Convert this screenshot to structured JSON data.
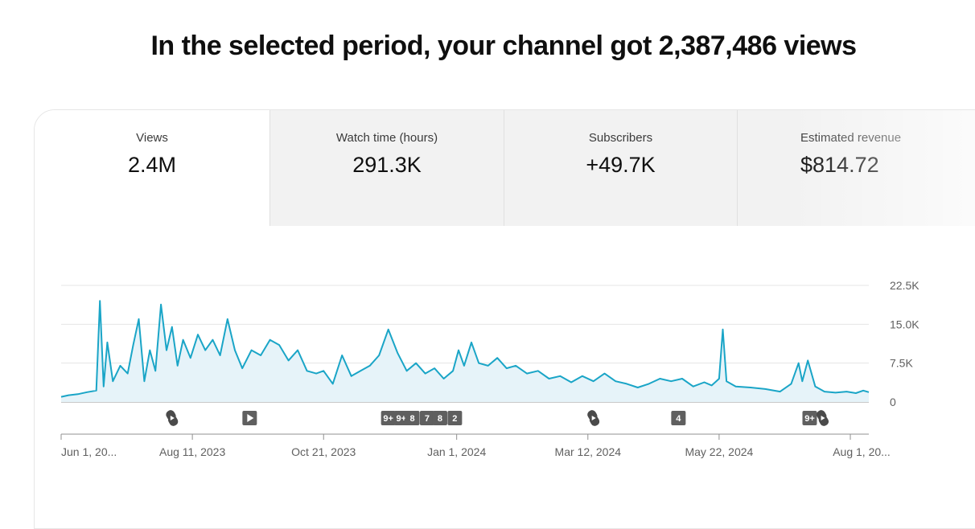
{
  "headline": "In the selected period, your channel got 2,387,486 views",
  "tabs": [
    {
      "label": "Views",
      "value": "2.4M",
      "active": true
    },
    {
      "label": "Watch time (hours)",
      "value": "291.3K",
      "active": false
    },
    {
      "label": "Subscribers",
      "value": "+49.7K",
      "active": false
    },
    {
      "label": "Estimated revenue",
      "value": "$814.72",
      "active": false
    }
  ],
  "colors": {
    "line": "#1aa5c7",
    "area": "#e6f3f9",
    "grid": "#e5e5e5",
    "axis": "#909090",
    "badge": "#5f5f5f"
  },
  "markers": [
    {
      "kind": "shorts-icon",
      "date": "Jul 31, 2023"
    },
    {
      "kind": "video-play-icon",
      "date": "Sep 11, 2023"
    },
    {
      "kind": "count",
      "label": "9+",
      "date": "Nov 25, 2023"
    },
    {
      "kind": "count",
      "label": "9+",
      "date": "Dec 2, 2023"
    },
    {
      "kind": "count",
      "label": "8",
      "date": "Dec 8, 2023"
    },
    {
      "kind": "count",
      "label": "7",
      "date": "Dec 16, 2023"
    },
    {
      "kind": "count",
      "label": "8",
      "date": "Dec 23, 2023"
    },
    {
      "kind": "count",
      "label": "2",
      "date": "Dec 31, 2023"
    },
    {
      "kind": "shorts-icon",
      "date": "Mar 15, 2024"
    },
    {
      "kind": "count",
      "label": "4",
      "date": "Apr 30, 2024"
    },
    {
      "kind": "count",
      "label": "9+",
      "date": "Jul 10, 2024"
    },
    {
      "kind": "shorts-icon",
      "date": "Jul 17, 2024"
    }
  ],
  "chart_data": {
    "type": "area",
    "xlabel": "",
    "ylabel": "",
    "ylim": [
      0,
      22500
    ],
    "yticks": [
      0,
      7500,
      15000,
      22500
    ],
    "ytick_labels": [
      "0",
      "7.5K",
      "15.0K",
      "22.5K"
    ],
    "xlim": [
      "Jun 1, 2023",
      "Aug 11, 2024"
    ],
    "xtick_labels": [
      {
        "label": "Jun 1, 20...",
        "date": "Jun 1, 2023"
      },
      {
        "label": "Aug 11, 2023",
        "date": "Aug 11, 2023"
      },
      {
        "label": "Oct 21, 2023",
        "date": "Oct 21, 2023"
      },
      {
        "label": "Jan 1, 2024",
        "date": "Jan 1, 2024"
      },
      {
        "label": "Mar 12, 2024",
        "date": "Mar 12, 2024"
      },
      {
        "label": "May 22, 2024",
        "date": "May 22, 2024"
      },
      {
        "label": "Aug 1, 20...",
        "date": "Aug 1, 2024"
      }
    ],
    "grid": true,
    "series": [
      {
        "points": [
          [
            "Jun 1, 2023",
            1000
          ],
          [
            "Jun 5, 2023",
            1300
          ],
          [
            "Jun 10, 2023",
            1500
          ],
          [
            "Jun 15, 2023",
            1900
          ],
          [
            "Jun 20, 2023",
            2200
          ],
          [
            "Jun 22, 2023",
            19500
          ],
          [
            "Jun 24, 2023",
            3000
          ],
          [
            "Jun 26, 2023",
            11500
          ],
          [
            "Jun 29, 2023",
            4000
          ],
          [
            "Jul 3, 2023",
            7000
          ],
          [
            "Jul 7, 2023",
            5500
          ],
          [
            "Jul 10, 2023",
            11000
          ],
          [
            "Jul 13, 2023",
            16000
          ],
          [
            "Jul 16, 2023",
            4000
          ],
          [
            "Jul 19, 2023",
            10000
          ],
          [
            "Jul 22, 2023",
            6000
          ],
          [
            "Jul 25, 2023",
            18800
          ],
          [
            "Jul 28, 2023",
            10000
          ],
          [
            "Jul 31, 2023",
            14500
          ],
          [
            "Aug 3, 2023",
            7000
          ],
          [
            "Aug 6, 2023",
            12000
          ],
          [
            "Aug 10, 2023",
            8500
          ],
          [
            "Aug 14, 2023",
            13000
          ],
          [
            "Aug 18, 2023",
            10000
          ],
          [
            "Aug 22, 2023",
            12000
          ],
          [
            "Aug 26, 2023",
            9000
          ],
          [
            "Aug 30, 2023",
            16000
          ],
          [
            "Sep 3, 2023",
            10000
          ],
          [
            "Sep 7, 2023",
            6500
          ],
          [
            "Sep 12, 2023",
            10000
          ],
          [
            "Sep 17, 2023",
            9000
          ],
          [
            "Sep 22, 2023",
            12000
          ],
          [
            "Sep 27, 2023",
            11000
          ],
          [
            "Oct 2, 2023",
            8000
          ],
          [
            "Oct 7, 2023",
            10000
          ],
          [
            "Oct 12, 2023",
            6000
          ],
          [
            "Oct 17, 2023",
            5500
          ],
          [
            "Oct 21, 2023",
            6000
          ],
          [
            "Oct 26, 2023",
            3500
          ],
          [
            "Oct 31, 2023",
            9000
          ],
          [
            "Nov 5, 2023",
            5000
          ],
          [
            "Nov 10, 2023",
            6000
          ],
          [
            "Nov 15, 2023",
            7000
          ],
          [
            "Nov 20, 2023",
            9000
          ],
          [
            "Nov 25, 2023",
            14000
          ],
          [
            "Nov 30, 2023",
            9500
          ],
          [
            "Dec 5, 2023",
            6000
          ],
          [
            "Dec 10, 2023",
            7500
          ],
          [
            "Dec 15, 2023",
            5500
          ],
          [
            "Dec 20, 2023",
            6500
          ],
          [
            "Dec 25, 2023",
            4500
          ],
          [
            "Dec 30, 2023",
            6000
          ],
          [
            "Jan 2, 2024",
            10000
          ],
          [
            "Jan 5, 2024",
            7000
          ],
          [
            "Jan 9, 2024",
            11500
          ],
          [
            "Jan 13, 2024",
            7500
          ],
          [
            "Jan 18, 2024",
            7000
          ],
          [
            "Jan 23, 2024",
            8500
          ],
          [
            "Jan 28, 2024",
            6500
          ],
          [
            "Feb 2, 2024",
            7000
          ],
          [
            "Feb 8, 2024",
            5500
          ],
          [
            "Feb 14, 2024",
            6000
          ],
          [
            "Feb 20, 2024",
            4500
          ],
          [
            "Feb 26, 2024",
            5000
          ],
          [
            "Mar 3, 2024",
            3800
          ],
          [
            "Mar 9, 2024",
            5000
          ],
          [
            "Mar 15, 2024",
            4000
          ],
          [
            "Mar 21, 2024",
            5500
          ],
          [
            "Mar 27, 2024",
            4000
          ],
          [
            "Apr 2, 2024",
            3500
          ],
          [
            "Apr 8, 2024",
            2800
          ],
          [
            "Apr 14, 2024",
            3500
          ],
          [
            "Apr 20, 2024",
            4500
          ],
          [
            "Apr 26, 2024",
            4000
          ],
          [
            "May 2, 2024",
            4500
          ],
          [
            "May 8, 2024",
            3000
          ],
          [
            "May 14, 2024",
            3800
          ],
          [
            "May 18, 2024",
            3200
          ],
          [
            "May 22, 2024",
            4500
          ],
          [
            "May 24, 2024",
            14000
          ],
          [
            "May 26, 2024",
            4000
          ],
          [
            "May 31, 2024",
            3000
          ],
          [
            "Jun 8, 2024",
            2800
          ],
          [
            "Jun 16, 2024",
            2500
          ],
          [
            "Jun 24, 2024",
            2000
          ],
          [
            "Jun 30, 2024",
            3500
          ],
          [
            "Jul 4, 2024",
            7500
          ],
          [
            "Jul 6, 2024",
            4000
          ],
          [
            "Jul 9, 2024",
            8000
          ],
          [
            "Jul 13, 2024",
            3000
          ],
          [
            "Jul 18, 2024",
            2000
          ],
          [
            "Jul 24, 2024",
            1800
          ],
          [
            "Jul 30, 2024",
            2000
          ],
          [
            "Aug 4, 2024",
            1700
          ],
          [
            "Aug 8, 2024",
            2200
          ],
          [
            "Aug 11, 2024",
            1900
          ]
        ]
      }
    ]
  }
}
